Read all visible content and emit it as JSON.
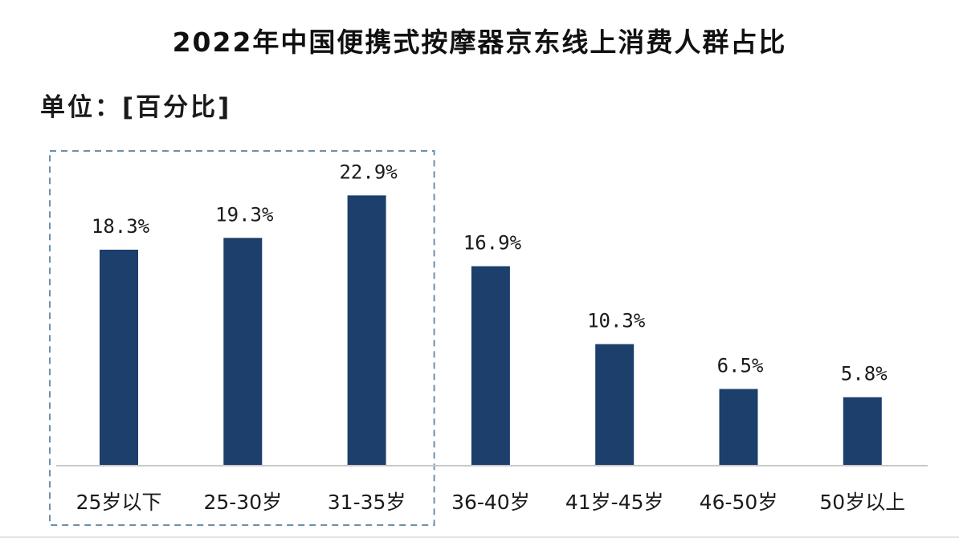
{
  "header": {
    "title": "2022年中国便携式按摩器京东线上消费人群占比",
    "unit": "单位：[百分比]"
  },
  "colors": {
    "bar": "#1c3f6b",
    "highlight_box": "#6f8fa8",
    "axis": "#c8c8c8",
    "text": "#1a1a1a"
  },
  "chart_data": {
    "type": "bar",
    "title": "2022年中国便携式按摩器京东线上消费人群占比",
    "ylabel": "单位：[百分比]",
    "xlabel": "",
    "categories": [
      "25岁以下",
      "25-30岁",
      "31-35岁",
      "36-40岁",
      "41岁-45岁",
      "46-50岁",
      "50岁以上"
    ],
    "values": [
      18.3,
      19.3,
      22.9,
      16.9,
      10.3,
      6.5,
      5.8
    ],
    "data_labels": [
      "18.3%",
      "19.3%",
      "22.9%",
      "16.9%",
      "10.3%",
      "6.5%",
      "5.8%"
    ],
    "ylim": [
      0,
      25
    ],
    "grid": false,
    "legend": "none",
    "highlighted_categories": [
      "25岁以下",
      "25-30岁",
      "31-35岁"
    ]
  }
}
